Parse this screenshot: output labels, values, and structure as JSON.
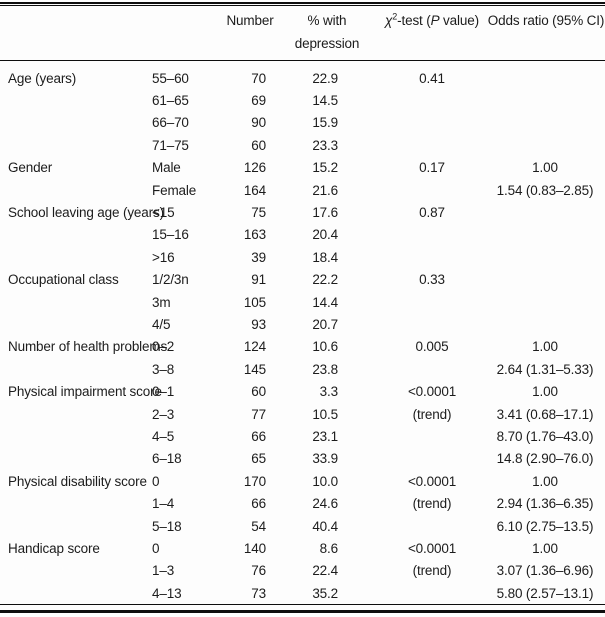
{
  "page": {
    "background": "#fdfdfd",
    "text_color": "#1c1c1c",
    "rule_color": "#0e0e0e"
  },
  "header": {
    "number": "Number",
    "pct_line1": "% with",
    "pct_line2": "depression",
    "chi": {
      "symbol": "χ",
      "sup": "2",
      "mid": "-test (",
      "p": "P",
      "end": " value)"
    },
    "odds": "Odds ratio (95% CI)"
  },
  "rows": [
    {
      "category": "Age (years)",
      "sub": "55–60",
      "n": "70",
      "pct": "22.9",
      "p": "0.41",
      "or": ""
    },
    {
      "category": "",
      "sub": "61–65",
      "n": "69",
      "pct": "14.5",
      "p": "",
      "or": ""
    },
    {
      "category": "",
      "sub": "66–70",
      "n": "90",
      "pct": "15.9",
      "p": "",
      "or": ""
    },
    {
      "category": "",
      "sub": "71–75",
      "n": "60",
      "pct": "23.3",
      "p": "",
      "or": ""
    },
    {
      "category": "Gender",
      "sub": "Male",
      "n": "126",
      "pct": "15.2",
      "p": "0.17",
      "or": "1.00"
    },
    {
      "category": "",
      "sub": "Female",
      "n": "164",
      "pct": "21.6",
      "p": "",
      "or": "1.54 (0.83–2.85)"
    },
    {
      "category": "School leaving age (years)",
      "sub": "<15",
      "n": "75",
      "pct": "17.6",
      "p": "0.87",
      "or": ""
    },
    {
      "category": "",
      "sub": "15–16",
      "n": "163",
      "pct": "20.4",
      "p": "",
      "or": ""
    },
    {
      "category": "",
      "sub": ">16",
      "n": "39",
      "pct": "18.4",
      "p": "",
      "or": ""
    },
    {
      "category": "Occupational class",
      "sub": "1/2/3n",
      "n": "91",
      "pct": "22.2",
      "p": "0.33",
      "or": ""
    },
    {
      "category": "",
      "sub": "3m",
      "n": "105",
      "pct": "14.4",
      "p": "",
      "or": ""
    },
    {
      "category": "",
      "sub": "4/5",
      "n": "93",
      "pct": "20.7",
      "p": "",
      "or": ""
    },
    {
      "category": "Number of health problems",
      "sub": "0–2",
      "n": "124",
      "pct": "10.6",
      "p": "0.005",
      "or": "1.00"
    },
    {
      "category": "",
      "sub": "3–8",
      "n": "145",
      "pct": "23.8",
      "p": "",
      "or": "2.64 (1.31–5.33)"
    },
    {
      "category": "Physical impairment score",
      "sub": "0–1",
      "n": "60",
      "pct": "3.3",
      "p": "<0.0001",
      "or": "1.00"
    },
    {
      "category": "",
      "sub": "2–3",
      "n": "77",
      "pct": "10.5",
      "p": "(trend)",
      "or": "3.41 (0.68–17.1)"
    },
    {
      "category": "",
      "sub": "4–5",
      "n": "66",
      "pct": "23.1",
      "p": "",
      "or": "8.70 (1.76–43.0)"
    },
    {
      "category": "",
      "sub": "6–18",
      "n": "65",
      "pct": "33.9",
      "p": "",
      "or": "14.8 (2.90–76.0)"
    },
    {
      "category": "Physical disability score",
      "sub": "0",
      "n": "170",
      "pct": "10.0",
      "p": "<0.0001",
      "or": "1.00"
    },
    {
      "category": "",
      "sub": "1–4",
      "n": "66",
      "pct": "24.6",
      "p": "(trend)",
      "or": "2.94 (1.36–6.35)"
    },
    {
      "category": "",
      "sub": "5–18",
      "n": "54",
      "pct": "40.4",
      "p": "",
      "or": "6.10 (2.75–13.5)"
    },
    {
      "category": "Handicap score",
      "sub": "0",
      "n": "140",
      "pct": "8.6",
      "p": "<0.0001",
      "or": "1.00"
    },
    {
      "category": "",
      "sub": "1–3",
      "n": "76",
      "pct": "22.4",
      "p": "(trend)",
      "or": "3.07 (1.36–6.96)"
    },
    {
      "category": "",
      "sub": "4–13",
      "n": "73",
      "pct": "35.2",
      "p": "",
      "or": "5.80 (2.57–13.1)"
    }
  ]
}
